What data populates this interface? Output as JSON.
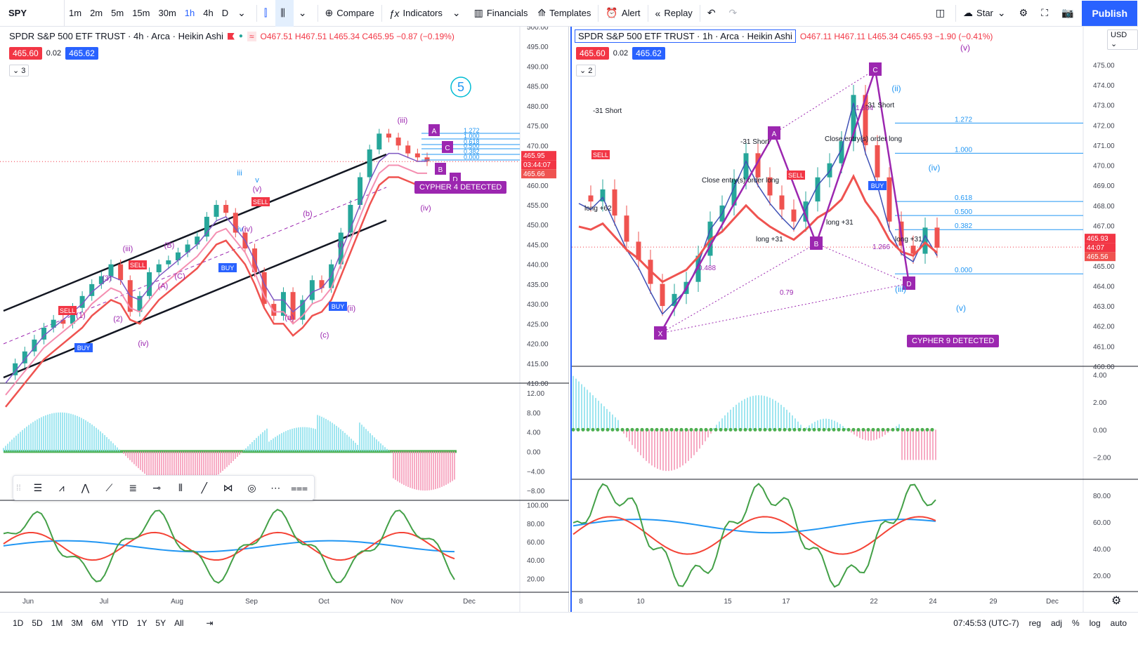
{
  "toolbar": {
    "symbol": "SPY",
    "intervals": [
      "1m",
      "2m",
      "5m",
      "15m",
      "30m",
      "1h",
      "4h",
      "D"
    ],
    "active_interval": "1h",
    "compare": "Compare",
    "indicators": "Indicators",
    "financials": "Financials",
    "templates": "Templates",
    "alert": "Alert",
    "replay": "Replay",
    "star": "Star",
    "publish": "Publish"
  },
  "left_chart": {
    "title": "SPDR S&P 500 ETF TRUST · 4h · Arca · Heikin Ashi",
    "ohlc": {
      "o": "O467.51",
      "h": "H467.51",
      "l": "L465.34",
      "c": "C465.95",
      "chg": "−0.87 (−0.19%)"
    },
    "sell_price": "465.60",
    "spread": "0.02",
    "buy_price": "465.62",
    "collapsed_count": "3",
    "price_ticks": [
      "500.00",
      "495.00",
      "490.00",
      "485.00",
      "480.00",
      "475.00",
      "470.00",
      "465.00",
      "460.00",
      "455.00",
      "450.00",
      "445.00",
      "440.00",
      "435.00",
      "430.00",
      "425.00",
      "420.00",
      "415.00",
      "410.00"
    ],
    "last_price": "465.95",
    "countdown": "03:44:07",
    "prev_price": "465.66",
    "osc_ticks": [
      "12.00",
      "8.00",
      "4.00",
      "0.00",
      "−4.00",
      "−8.00"
    ],
    "rsi_ticks": [
      "100.00",
      "80.00",
      "60.00",
      "40.00",
      "20.00"
    ],
    "time_ticks": [
      "Jun",
      "Jul",
      "Aug",
      "Sep",
      "Oct",
      "Nov",
      "Dec"
    ],
    "cypher_label": "CYPHER 4 DETECTED",
    "waves": [
      "(iii)",
      "(iv)",
      "(iii)",
      "(iv)",
      "(a)",
      "(b)",
      "(c)",
      "(i)",
      "(ii)",
      "(v)",
      "(iv)",
      "iii",
      "iv",
      "v",
      "5",
      "(3)",
      "(2)",
      "(1)",
      "(A)",
      "(B)",
      "(C)"
    ],
    "fib_levels": [
      "1.272",
      "1.000",
      "0.618",
      "0.500",
      "0.382",
      "0.000"
    ],
    "signals": [
      "SELL",
      "BUY",
      "SELL",
      "BUY",
      "SELL",
      "BUY"
    ],
    "pattern_points": [
      "A",
      "B",
      "C",
      "D"
    ]
  },
  "right_chart": {
    "title": "SPDR S&P 500 ETF TRUST · 1h · Arca · Heikin Ashi",
    "ohlc": {
      "o": "O467.11",
      "h": "H467.11",
      "l": "L465.34",
      "c": "C465.93",
      "chg": "−1.90 (−0.41%)"
    },
    "sell_price": "465.60",
    "spread": "0.02",
    "buy_price": "465.62",
    "collapsed_count": "2",
    "currency": "USD",
    "price_ticks": [
      "475.00",
      "474.00",
      "473.00",
      "472.00",
      "471.00",
      "470.00",
      "469.00",
      "468.00",
      "467.00",
      "466.00",
      "465.00",
      "464.00",
      "463.00",
      "462.00",
      "461.00",
      "460.00"
    ],
    "last_price": "465.93",
    "countdown": "44:07",
    "prev_price": "465.56",
    "osc_ticks": [
      "4.00",
      "2.00",
      "0.00",
      "−2.00"
    ],
    "rsi_ticks": [
      "80.00",
      "60.00",
      "40.00",
      "20.00"
    ],
    "time_ticks": [
      "8",
      "10",
      "15",
      "17",
      "22",
      "24",
      "29",
      "Dec"
    ],
    "cypher_label": "CYPHER 9 DETECTED",
    "fib": [
      {
        "level": "1.272",
        "price": 472.1
      },
      {
        "level": "1.000",
        "price": 470.6
      },
      {
        "level": "0.618",
        "price": 468.2
      },
      {
        "level": "0.500",
        "price": 467.5
      },
      {
        "level": "0.382",
        "price": 466.8
      },
      {
        "level": "0.000",
        "price": 464.6
      }
    ],
    "pattern_points": [
      "X",
      "A",
      "B",
      "C",
      "D"
    ],
    "ratios": [
      "1.364",
      "1.266",
      "0.79",
      "0.488"
    ],
    "waves": [
      "(v)",
      "(ii)",
      "(iv)",
      "(iii)",
      "(v)"
    ],
    "notes": [
      "-31 Short",
      "-31 Short",
      "Close entry(s) order long",
      "long +62",
      "long +31",
      "long +31",
      "-31 Short",
      "Close entry(s) order long",
      "long +31"
    ],
    "signals": [
      "SELL",
      "BUY",
      "SELL"
    ]
  },
  "left_price_data": {
    "min": 410,
    "max": 500,
    "series": [
      412,
      415,
      418,
      421,
      424,
      426,
      425,
      429,
      432,
      435,
      437,
      440,
      436,
      428,
      432,
      438,
      440,
      441,
      443,
      445,
      447,
      452,
      455,
      453,
      448,
      444,
      438,
      430,
      427,
      433,
      426,
      431,
      436,
      434,
      440,
      448,
      455,
      462,
      469,
      473,
      472,
      470,
      468,
      467,
      466
    ],
    "ema_fast": [
      410,
      413,
      416,
      419,
      422,
      424,
      426,
      428,
      430,
      433,
      435,
      437,
      436,
      432,
      431,
      434,
      437,
      439,
      441,
      443,
      445,
      448,
      451,
      452,
      449,
      446,
      441,
      435,
      431,
      431,
      428,
      430,
      433,
      434,
      437,
      443,
      449,
      455,
      461,
      466,
      468,
      468,
      467,
      466,
      466
    ]
  },
  "right_price_data": {
    "min": 460,
    "max": 475.5,
    "series": [
      468.5,
      468.2,
      468.8,
      467.5,
      466.2,
      465.3,
      464.1,
      463.0,
      463.6,
      464.2,
      465.5,
      467.2,
      468.0,
      469.3,
      470.6,
      469.4,
      468.5,
      467.8,
      467.2,
      468.2,
      469.4,
      470.1,
      471.2,
      473.5,
      471.0,
      469.4,
      467.2,
      466.0,
      465.6,
      466.9,
      465.9
    ]
  },
  "bottom": {
    "ranges": [
      "1D",
      "5D",
      "1M",
      "3M",
      "6M",
      "YTD",
      "1Y",
      "5Y",
      "All"
    ],
    "clock": "07:45:53 (UTC-7)",
    "opts": [
      "reg",
      "adj",
      "%",
      "log",
      "auto"
    ]
  },
  "colors": {
    "up": "#26a69a",
    "down": "#ef5350",
    "accent": "#2962ff",
    "purple": "#9c27b0",
    "sell": "#f23645"
  }
}
